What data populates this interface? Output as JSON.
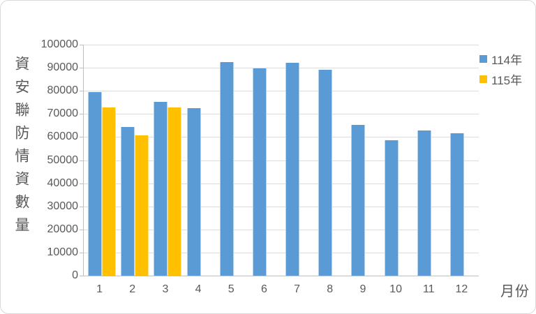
{
  "frame": {
    "background": "#FFFFFF",
    "border_color": "#D9D9D9"
  },
  "chart_data": {
    "type": "bar",
    "title": "",
    "ylabel": "資安聯防情資數量",
    "xlabel": "月份",
    "categories": [
      "1",
      "2",
      "3",
      "4",
      "5",
      "6",
      "7",
      "8",
      "9",
      "10",
      "11",
      "12"
    ],
    "series": [
      {
        "name": "114年",
        "color": "#5B9BD5",
        "values": [
          79500,
          64500,
          75100,
          72600,
          92500,
          89600,
          92100,
          89200,
          65300,
          58600,
          62900,
          61700
        ]
      },
      {
        "name": "115年",
        "color": "#FFC000",
        "values": [
          72800,
          60800,
          72900,
          null,
          null,
          null,
          null,
          null,
          null,
          null,
          null,
          null
        ]
      }
    ],
    "ylim": [
      0,
      100000
    ],
    "ytick_step": 10000,
    "grid": true,
    "legend_position": "top-right",
    "axis_text_color": "#595959",
    "gridline_color": "#DCDCDC",
    "axis_line_color": "#BFBFBF"
  }
}
